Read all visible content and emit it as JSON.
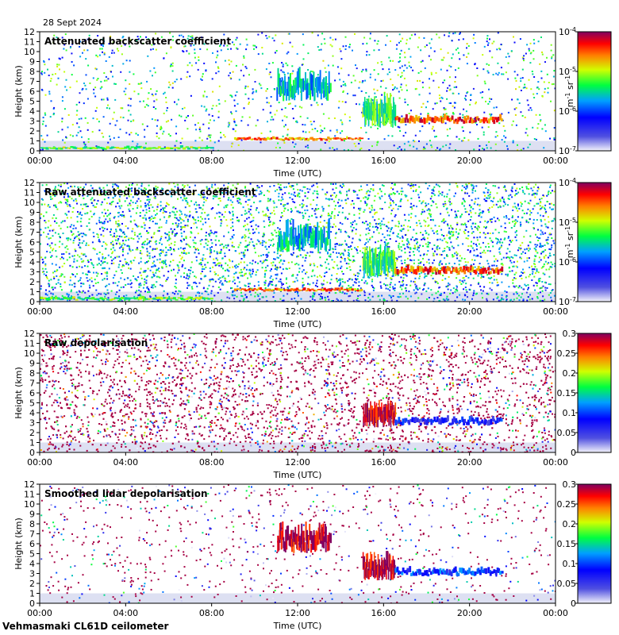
{
  "date": "28 Sept 2024",
  "footer": "Vehmasmaki CL61D ceilometer",
  "chart_data": [
    {
      "type": "heatmap",
      "title": "Attenuated backscatter coefficient",
      "xlabel": "Time (UTC)",
      "ylabel": "Height (km)",
      "x_ticks": [
        "00:00",
        "04:00",
        "08:00",
        "12:00",
        "16:00",
        "20:00",
        "00:00"
      ],
      "y_ticks": [
        "0",
        "1",
        "2",
        "3",
        "4",
        "5",
        "6",
        "7",
        "8",
        "9",
        "10",
        "11",
        "12"
      ],
      "ylim": [
        0,
        12
      ],
      "colorbar": {
        "scale": "log",
        "ticks": [
          {
            "base": "10",
            "exp": "-4"
          },
          {
            "base": "10",
            "exp": "-5"
          },
          {
            "base": "10",
            "exp": "-6"
          },
          {
            "base": "10",
            "exp": "-7"
          }
        ],
        "unit_base": "m",
        "unit_exp1": "-1",
        "unit_mid": " sr",
        "unit_exp2": "-1"
      },
      "noise": "sparse",
      "features": [
        {
          "t0": 0,
          "t1": 8,
          "h0": 0.1,
          "h1": 0.5,
          "level": 0.6
        },
        {
          "t0": 9,
          "t1": 15,
          "h0": 1.0,
          "h1": 1.4,
          "level": 0.8
        },
        {
          "t0": 11,
          "t1": 13.5,
          "h0": 5,
          "h1": 8,
          "level": 0.45
        },
        {
          "t0": 15,
          "t1": 16.5,
          "h0": 2.3,
          "h1": 5.5,
          "level": 0.55
        },
        {
          "t0": 16.5,
          "t1": 21.5,
          "h0": 2.7,
          "h1": 3.6,
          "level": 0.85
        }
      ]
    },
    {
      "type": "heatmap",
      "title": "Raw attenuated backscatter coefficient",
      "xlabel": "Time (UTC)",
      "ylabel": "Height (km)",
      "x_ticks": [
        "00:00",
        "04:00",
        "08:00",
        "12:00",
        "16:00",
        "20:00",
        "00:00"
      ],
      "y_ticks": [
        "0",
        "1",
        "2",
        "3",
        "4",
        "5",
        "6",
        "7",
        "8",
        "9",
        "10",
        "11",
        "12"
      ],
      "ylim": [
        0,
        12
      ],
      "colorbar": {
        "scale": "log",
        "ticks": [
          {
            "base": "10",
            "exp": "-4"
          },
          {
            "base": "10",
            "exp": "-5"
          },
          {
            "base": "10",
            "exp": "-6"
          },
          {
            "base": "10",
            "exp": "-7"
          }
        ],
        "unit_base": "m",
        "unit_exp1": "-1",
        "unit_mid": " sr",
        "unit_exp2": "-1"
      },
      "noise": "dense",
      "features": [
        {
          "t0": 0,
          "t1": 8,
          "h0": 0.1,
          "h1": 0.5,
          "level": 0.6
        },
        {
          "t0": 9,
          "t1": 15,
          "h0": 1.0,
          "h1": 1.4,
          "level": 0.8
        },
        {
          "t0": 11,
          "t1": 13.5,
          "h0": 5,
          "h1": 8,
          "level": 0.45
        },
        {
          "t0": 15,
          "t1": 16.5,
          "h0": 2.3,
          "h1": 5.5,
          "level": 0.55
        },
        {
          "t0": 16.5,
          "t1": 21.5,
          "h0": 2.7,
          "h1": 3.6,
          "level": 0.85
        }
      ]
    },
    {
      "type": "heatmap",
      "title": "Raw depolarisation",
      "xlabel": "Time (UTC)",
      "ylabel": "Height (km)",
      "x_ticks": [
        "00:00",
        "04:00",
        "08:00",
        "12:00",
        "16:00",
        "20:00",
        "00:00"
      ],
      "y_ticks": [
        "0",
        "1",
        "2",
        "3",
        "4",
        "5",
        "6",
        "7",
        "8",
        "9",
        "10",
        "11",
        "12"
      ],
      "ylim": [
        0,
        12
      ],
      "colorbar": {
        "scale": "linear",
        "range": [
          0,
          0.3
        ],
        "ticks": [
          "0.3",
          "0.25",
          "0.2",
          "0.15",
          "0.1",
          "0.05",
          "0"
        ]
      },
      "noise": "purple",
      "features": [
        {
          "t0": 15,
          "t1": 16.5,
          "h0": 2.5,
          "h1": 5.0,
          "level": 0.95
        },
        {
          "t0": 16.5,
          "t1": 21.5,
          "h0": 2.7,
          "h1": 3.6,
          "level": 0.25
        }
      ]
    },
    {
      "type": "heatmap",
      "title": "Smoothed lidar depolarisation",
      "xlabel": "Time (UTC)",
      "ylabel": "Height (km)",
      "x_ticks": [
        "00:00",
        "04:00",
        "08:00",
        "12:00",
        "16:00",
        "20:00",
        "00:00"
      ],
      "y_ticks": [
        "0",
        "1",
        "2",
        "3",
        "4",
        "5",
        "6",
        "7",
        "8",
        "9",
        "10",
        "11",
        "12"
      ],
      "ylim": [
        0,
        12
      ],
      "colorbar": {
        "scale": "linear",
        "range": [
          0,
          0.3
        ],
        "ticks": [
          "0.3",
          "0.25",
          "0.2",
          "0.15",
          "0.1",
          "0.05",
          "0"
        ]
      },
      "noise": "sparse-purple",
      "features": [
        {
          "t0": 11,
          "t1": 13.5,
          "h0": 5,
          "h1": 8,
          "level": 0.95
        },
        {
          "t0": 15,
          "t1": 16.5,
          "h0": 2.3,
          "h1": 5.0,
          "level": 0.95
        },
        {
          "t0": 16.5,
          "t1": 21.5,
          "h0": 2.7,
          "h1": 3.6,
          "level": 0.3
        }
      ]
    }
  ]
}
